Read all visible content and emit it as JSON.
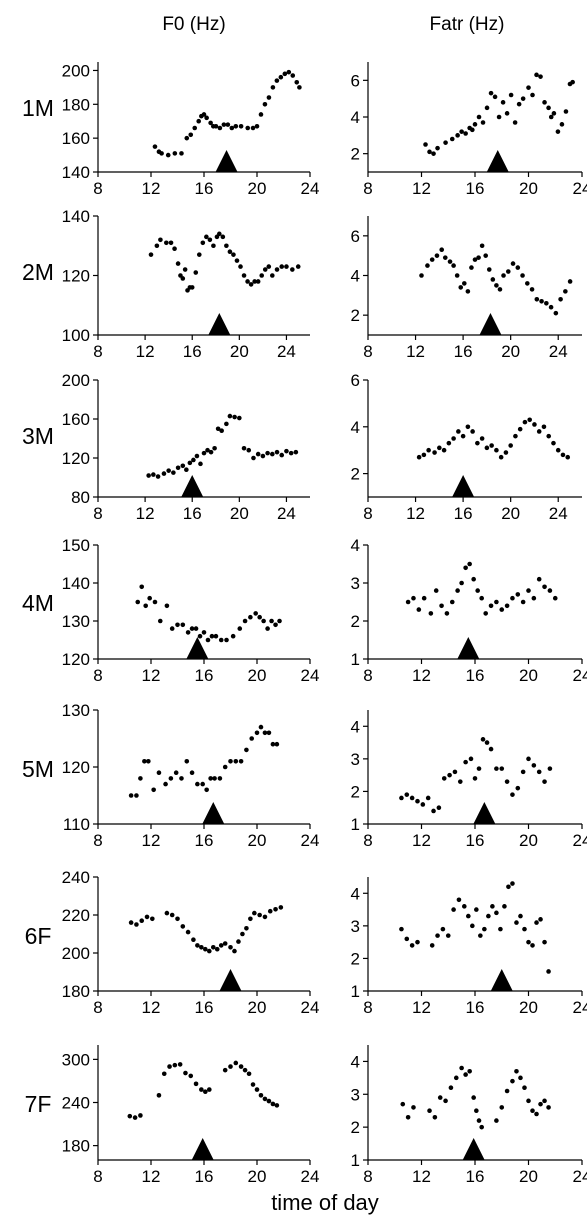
{
  "column_titles": [
    "F0 (Hz)",
    "Fatr (Hz)"
  ],
  "xlabel": "time of day",
  "row_labels": [
    "1M",
    "2M",
    "3M",
    "4M",
    "5M",
    "6F",
    "7F"
  ],
  "chart_data": [
    {
      "type": "scatter",
      "subject": "1M",
      "column": "F0 (Hz)",
      "xlim": [
        8,
        24
      ],
      "xticks": [
        8,
        12,
        16,
        20,
        24
      ],
      "ylim": [
        140,
        205
      ],
      "yticks": [
        140,
        160,
        180,
        200
      ],
      "marker_x": 17.7,
      "x": [
        12.3,
        12.6,
        12.8,
        13.3,
        13.8,
        14.3,
        14.7,
        15.0,
        15.3,
        15.6,
        15.8,
        16.0,
        16.2,
        16.5,
        16.7,
        16.9,
        17.2,
        17.5,
        17.8,
        18.1,
        18.4,
        18.8,
        19.3,
        19.7,
        20.0,
        20.3,
        20.6,
        20.9,
        21.2,
        21.5,
        21.8,
        22.1,
        22.4,
        22.7,
        23.0,
        23.2
      ],
      "y": [
        155,
        152,
        151,
        150,
        151,
        151,
        160,
        162,
        166,
        170,
        173,
        174,
        172,
        169,
        167,
        167,
        166,
        168,
        168,
        166,
        167,
        167,
        166,
        166,
        167,
        174,
        180,
        184,
        190,
        194,
        196,
        198,
        199,
        197,
        193,
        190
      ]
    },
    {
      "type": "scatter",
      "subject": "1M",
      "column": "Fatr (Hz)",
      "xlim": [
        8,
        24
      ],
      "xticks": [
        8,
        12,
        16,
        20,
        24
      ],
      "ylim": [
        1,
        7
      ],
      "yticks": [
        2,
        4,
        6
      ],
      "marker_x": 17.7,
      "x": [
        12.3,
        12.6,
        12.9,
        13.2,
        13.8,
        14.3,
        14.7,
        15.0,
        15.3,
        15.6,
        15.8,
        16.0,
        16.3,
        16.6,
        16.9,
        17.2,
        17.5,
        17.8,
        18.1,
        18.4,
        18.7,
        19.0,
        19.3,
        19.6,
        20.0,
        20.3,
        20.6,
        20.9,
        21.2,
        21.5,
        21.7,
        21.9,
        22.2,
        22.5,
        22.8,
        23.1,
        23.3
      ],
      "y": [
        2.5,
        2.1,
        2.0,
        2.3,
        2.6,
        2.8,
        3.0,
        3.2,
        3.1,
        3.4,
        3.3,
        3.6,
        4.0,
        3.7,
        4.5,
        5.3,
        5.1,
        4.0,
        4.8,
        4.2,
        5.2,
        3.7,
        4.7,
        5.0,
        5.6,
        5.2,
        6.3,
        6.2,
        4.8,
        4.5,
        4.0,
        4.2,
        3.2,
        3.6,
        4.3,
        5.8,
        5.9
      ]
    },
    {
      "type": "scatter",
      "subject": "2M",
      "column": "F0 (Hz)",
      "xlim": [
        8,
        26
      ],
      "xticks": [
        8,
        12,
        16,
        20,
        24
      ],
      "ylim": [
        100,
        140
      ],
      "yticks": [
        100,
        120,
        140
      ],
      "marker_x": 18.3,
      "x": [
        12.5,
        13.0,
        13.3,
        13.8,
        14.2,
        14.5,
        14.8,
        15.0,
        15.2,
        15.4,
        15.6,
        15.8,
        16.0,
        16.3,
        16.6,
        16.9,
        17.2,
        17.5,
        17.8,
        18.1,
        18.3,
        18.6,
        18.9,
        19.2,
        19.5,
        19.8,
        20.1,
        20.4,
        20.7,
        21.0,
        21.3,
        21.6,
        21.9,
        22.2,
        22.5,
        22.8,
        23.2,
        23.6,
        24.0,
        24.5,
        25.0
      ],
      "y": [
        127,
        130,
        132,
        131,
        131,
        129,
        124,
        120,
        119,
        122,
        115,
        116,
        116,
        121,
        127,
        131,
        133,
        132,
        130,
        133,
        134,
        133,
        130,
        128,
        127,
        125,
        123,
        120,
        118,
        117,
        118,
        118,
        120,
        122,
        123,
        120,
        122,
        123,
        123,
        122,
        123
      ]
    },
    {
      "type": "scatter",
      "subject": "2M",
      "column": "Fatr (Hz)",
      "xlim": [
        8,
        26
      ],
      "xticks": [
        8,
        12,
        16,
        20,
        24
      ],
      "ylim": [
        1,
        7
      ],
      "yticks": [
        2,
        4,
        6
      ],
      "marker_x": 18.3,
      "x": [
        12.5,
        13.0,
        13.4,
        13.8,
        14.2,
        14.5,
        14.9,
        15.2,
        15.5,
        15.8,
        16.1,
        16.4,
        16.7,
        17.0,
        17.3,
        17.6,
        17.9,
        18.2,
        18.5,
        18.8,
        19.1,
        19.4,
        19.8,
        20.2,
        20.6,
        21.0,
        21.4,
        21.8,
        22.2,
        22.6,
        23.0,
        23.4,
        23.8,
        24.2,
        24.6,
        25.0
      ],
      "y": [
        4.0,
        4.5,
        4.8,
        5.0,
        5.3,
        4.9,
        4.7,
        4.5,
        4.0,
        3.4,
        3.6,
        3.2,
        4.4,
        4.8,
        4.9,
        5.5,
        5.0,
        4.3,
        3.8,
        3.5,
        3.3,
        4.0,
        4.2,
        4.6,
        4.4,
        4.0,
        3.6,
        3.3,
        2.8,
        2.7,
        2.6,
        2.4,
        2.1,
        2.8,
        3.2,
        3.7
      ]
    },
    {
      "type": "scatter",
      "subject": "3M",
      "column": "F0 (Hz)",
      "xlim": [
        8,
        26
      ],
      "xticks": [
        8,
        12,
        16,
        20,
        24
      ],
      "ylim": [
        80,
        200
      ],
      "yticks": [
        80,
        120,
        160,
        200
      ],
      "marker_x": 16.0,
      "x": [
        12.3,
        12.7,
        13.1,
        13.6,
        14.0,
        14.4,
        14.8,
        15.2,
        15.5,
        15.8,
        16.1,
        16.4,
        16.7,
        17.0,
        17.3,
        17.6,
        17.9,
        18.2,
        18.5,
        18.9,
        19.2,
        19.6,
        20.0,
        20.4,
        20.8,
        21.2,
        21.6,
        22.0,
        22.4,
        22.8,
        23.2,
        23.6,
        24.0,
        24.4,
        24.8
      ],
      "y": [
        102,
        103,
        101,
        104,
        107,
        105,
        110,
        112,
        108,
        115,
        118,
        122,
        114,
        125,
        128,
        126,
        130,
        150,
        148,
        155,
        163,
        162,
        161,
        130,
        128,
        120,
        124,
        122,
        125,
        124,
        126,
        123,
        127,
        125,
        126
      ]
    },
    {
      "type": "scatter",
      "subject": "3M",
      "column": "Fatr (Hz)",
      "xlim": [
        8,
        26
      ],
      "xticks": [
        8,
        12,
        16,
        20,
        24
      ],
      "ylim": [
        1,
        6
      ],
      "yticks": [
        2,
        4,
        6
      ],
      "marker_x": 16.0,
      "x": [
        12.3,
        12.7,
        13.1,
        13.6,
        14.0,
        14.4,
        14.8,
        15.2,
        15.6,
        16.0,
        16.4,
        16.8,
        17.2,
        17.6,
        18.0,
        18.4,
        18.8,
        19.2,
        19.6,
        20.0,
        20.4,
        20.8,
        21.2,
        21.6,
        22.0,
        22.4,
        22.8,
        23.2,
        23.6,
        24.0,
        24.4,
        24.8
      ],
      "y": [
        2.7,
        2.8,
        3.0,
        2.9,
        3.1,
        3.0,
        3.3,
        3.5,
        3.8,
        3.6,
        4.0,
        3.8,
        3.3,
        3.5,
        3.1,
        3.2,
        3.0,
        2.7,
        2.9,
        3.2,
        3.6,
        3.9,
        4.2,
        4.3,
        4.1,
        3.8,
        4.0,
        3.6,
        3.3,
        3.0,
        2.8,
        2.7
      ]
    },
    {
      "type": "scatter",
      "subject": "4M",
      "column": "F0 (Hz)",
      "xlim": [
        8,
        24
      ],
      "xticks": [
        8,
        12,
        16,
        20,
        24
      ],
      "ylim": [
        120,
        150
      ],
      "yticks": [
        120,
        130,
        140,
        150
      ],
      "marker_x": 15.5,
      "x": [
        11.0,
        11.3,
        11.6,
        11.9,
        12.3,
        12.7,
        13.2,
        13.6,
        14.0,
        14.4,
        14.8,
        15.1,
        15.4,
        15.7,
        16.0,
        16.3,
        16.6,
        16.9,
        17.3,
        17.7,
        18.2,
        18.7,
        19.1,
        19.5,
        19.9,
        20.2,
        20.5,
        20.8,
        21.1,
        21.4,
        21.7
      ],
      "y": [
        135,
        139,
        134,
        136,
        135,
        130,
        134,
        128,
        129,
        129,
        127,
        128,
        128,
        126,
        127,
        125,
        126,
        126,
        125,
        125,
        126,
        128,
        130,
        131,
        132,
        131,
        130,
        128,
        130,
        129,
        130
      ]
    },
    {
      "type": "scatter",
      "subject": "4M",
      "column": "Fatr (Hz)",
      "xlim": [
        8,
        24
      ],
      "xticks": [
        8,
        12,
        16,
        20,
        24
      ],
      "ylim": [
        1,
        4
      ],
      "yticks": [
        1,
        2,
        3,
        4
      ],
      "marker_x": 15.5,
      "x": [
        11.0,
        11.4,
        11.8,
        12.2,
        12.7,
        13.1,
        13.5,
        13.9,
        14.3,
        14.7,
        15.0,
        15.3,
        15.6,
        15.9,
        16.2,
        16.5,
        16.8,
        17.2,
        17.6,
        18.0,
        18.4,
        18.8,
        19.2,
        19.6,
        20.0,
        20.4,
        20.8,
        21.2,
        21.6,
        22.0
      ],
      "y": [
        2.5,
        2.6,
        2.3,
        2.6,
        2.2,
        2.8,
        2.4,
        2.2,
        2.5,
        2.8,
        3.0,
        3.4,
        3.5,
        3.1,
        2.8,
        2.6,
        2.2,
        2.4,
        2.5,
        2.3,
        2.4,
        2.6,
        2.7,
        2.5,
        2.8,
        2.6,
        3.1,
        2.9,
        2.8,
        2.6
      ]
    },
    {
      "type": "scatter",
      "subject": "5M",
      "column": "F0 (Hz)",
      "xlim": [
        8,
        24
      ],
      "xticks": [
        8,
        12,
        16,
        20,
        24
      ],
      "ylim": [
        110,
        130
      ],
      "yticks": [
        110,
        120,
        130
      ],
      "marker_x": 16.7,
      "x": [
        10.5,
        10.9,
        11.2,
        11.5,
        11.8,
        12.2,
        12.6,
        13.1,
        13.5,
        13.9,
        14.3,
        14.7,
        15.1,
        15.5,
        15.9,
        16.2,
        16.5,
        16.8,
        17.2,
        17.6,
        18.0,
        18.4,
        18.8,
        19.2,
        19.6,
        20.0,
        20.3,
        20.6,
        20.9,
        21.2,
        21.5
      ],
      "y": [
        115,
        115,
        118,
        121,
        121,
        116,
        119,
        117,
        118,
        119,
        118,
        121,
        119,
        117,
        117,
        116,
        118,
        118,
        118,
        120,
        121,
        121,
        121,
        123,
        125,
        126,
        127,
        126,
        126,
        124,
        124
      ]
    },
    {
      "type": "scatter",
      "subject": "5M",
      "column": "Fatr (Hz)",
      "xlim": [
        8,
        24
      ],
      "xticks": [
        8,
        12,
        16,
        20,
        24
      ],
      "ylim": [
        1,
        4.5
      ],
      "yticks": [
        1,
        2,
        3,
        4
      ],
      "marker_x": 16.7,
      "x": [
        10.5,
        10.9,
        11.3,
        11.7,
        12.1,
        12.5,
        12.9,
        13.3,
        13.7,
        14.1,
        14.5,
        14.9,
        15.3,
        15.7,
        16.0,
        16.3,
        16.6,
        16.9,
        17.2,
        17.6,
        18.0,
        18.4,
        18.8,
        19.2,
        19.6,
        20.0,
        20.4,
        20.8,
        21.2,
        21.6
      ],
      "y": [
        1.8,
        1.9,
        1.8,
        1.7,
        1.6,
        1.8,
        1.4,
        1.5,
        2.4,
        2.5,
        2.6,
        2.3,
        2.9,
        3.0,
        2.4,
        2.7,
        3.6,
        3.5,
        3.3,
        2.7,
        2.7,
        2.3,
        1.9,
        2.1,
        2.6,
        3.0,
        2.8,
        2.6,
        2.3,
        2.7
      ]
    },
    {
      "type": "scatter",
      "subject": "6F",
      "column": "F0 (Hz)",
      "xlim": [
        8,
        24
      ],
      "xticks": [
        8,
        12,
        16,
        20,
        24
      ],
      "ylim": [
        180,
        240
      ],
      "yticks": [
        180,
        200,
        220,
        240
      ],
      "marker_x": 18.0,
      "x": [
        10.5,
        10.9,
        11.3,
        11.7,
        12.1,
        13.2,
        13.6,
        14.0,
        14.4,
        14.8,
        15.2,
        15.5,
        15.8,
        16.1,
        16.4,
        16.7,
        17.0,
        17.3,
        17.6,
        18.0,
        18.3,
        18.6,
        18.9,
        19.2,
        19.5,
        19.8,
        20.2,
        20.6,
        21.0,
        21.4,
        21.8
      ],
      "y": [
        216,
        215,
        217,
        219,
        218,
        221,
        220,
        218,
        214,
        211,
        207,
        204,
        203,
        202,
        201,
        203,
        202,
        204,
        205,
        203,
        201,
        206,
        210,
        213,
        218,
        221,
        220,
        219,
        222,
        223,
        224
      ]
    },
    {
      "type": "scatter",
      "subject": "6F",
      "column": "Fatr (Hz)",
      "xlim": [
        8,
        24
      ],
      "xticks": [
        8,
        12,
        16,
        20,
        24
      ],
      "ylim": [
        1,
        4.5
      ],
      "yticks": [
        1,
        2,
        3,
        4
      ],
      "marker_x": 18.0,
      "x": [
        10.5,
        10.9,
        11.3,
        11.7,
        12.8,
        13.2,
        13.6,
        14.0,
        14.4,
        14.8,
        15.2,
        15.5,
        15.8,
        16.1,
        16.4,
        16.7,
        17.0,
        17.3,
        17.6,
        17.9,
        18.2,
        18.5,
        18.8,
        19.1,
        19.4,
        19.7,
        20.0,
        20.3,
        20.6,
        20.9,
        21.2,
        21.5
      ],
      "y": [
        2.9,
        2.6,
        2.4,
        2.5,
        2.4,
        2.7,
        2.9,
        2.7,
        3.5,
        3.8,
        3.6,
        3.3,
        3.0,
        3.5,
        2.7,
        2.9,
        3.3,
        3.6,
        3.4,
        2.9,
        3.6,
        4.2,
        4.3,
        3.1,
        3.3,
        2.9,
        2.5,
        2.4,
        3.1,
        3.2,
        2.5,
        1.6
      ]
    },
    {
      "type": "scatter",
      "subject": "7F",
      "column": "F0 (Hz)",
      "xlim": [
        8,
        24
      ],
      "xticks": [
        8,
        12,
        16,
        20,
        24
      ],
      "ylim": [
        160,
        320
      ],
      "yticks": [
        180,
        240,
        300
      ],
      "marker_x": 15.9,
      "x": [
        10.4,
        10.8,
        11.2,
        12.6,
        13.0,
        13.4,
        13.8,
        14.2,
        14.6,
        15.0,
        15.4,
        15.8,
        16.1,
        16.4,
        17.6,
        18.0,
        18.4,
        18.8,
        19.1,
        19.4,
        19.7,
        20.0,
        20.3,
        20.6,
        20.9,
        21.2,
        21.5
      ],
      "y": [
        221,
        219,
        222,
        250,
        280,
        290,
        292,
        293,
        281,
        277,
        266,
        258,
        255,
        258,
        285,
        290,
        295,
        290,
        285,
        280,
        265,
        258,
        250,
        245,
        242,
        238,
        236
      ]
    },
    {
      "type": "scatter",
      "subject": "7F",
      "column": "Fatr (Hz)",
      "xlim": [
        8,
        24
      ],
      "xticks": [
        8,
        12,
        16,
        20,
        24
      ],
      "ylim": [
        1,
        4.5
      ],
      "yticks": [
        1,
        2,
        3,
        4
      ],
      "marker_x": 15.9,
      "x": [
        10.6,
        11.0,
        11.4,
        12.6,
        13.0,
        13.4,
        13.8,
        14.2,
        14.6,
        15.0,
        15.3,
        15.6,
        15.9,
        16.1,
        16.3,
        16.5,
        17.6,
        18.0,
        18.4,
        18.8,
        19.1,
        19.4,
        19.7,
        20.0,
        20.3,
        20.6,
        20.9,
        21.2,
        21.5
      ],
      "y": [
        2.7,
        2.3,
        2.6,
        2.5,
        2.3,
        2.9,
        2.8,
        3.2,
        3.5,
        3.8,
        3.6,
        3.7,
        2.9,
        2.5,
        2.2,
        2.0,
        2.2,
        2.6,
        3.1,
        3.4,
        3.7,
        3.5,
        3.2,
        2.8,
        2.5,
        2.4,
        2.7,
        2.8,
        2.6
      ]
    }
  ]
}
